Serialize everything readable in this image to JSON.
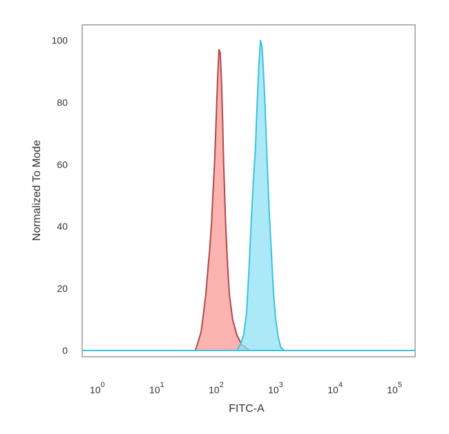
{
  "chart_data": {
    "type": "area",
    "xlabel": "FITC-A",
    "ylabel": "Normalized To Mode",
    "x_scale": "log",
    "xlim": [
      0.5,
      200000
    ],
    "ylim": [
      -2,
      105
    ],
    "grid": false,
    "legend": "none",
    "x_ticks": [
      {
        "base": "10",
        "exp": "0",
        "value": 1
      },
      {
        "base": "10",
        "exp": "1",
        "value": 10
      },
      {
        "base": "10",
        "exp": "2",
        "value": 100
      },
      {
        "base": "10",
        "exp": "3",
        "value": 1000
      },
      {
        "base": "10",
        "exp": "4",
        "value": 10000
      },
      {
        "base": "10",
        "exp": "5",
        "value": 100000
      }
    ],
    "y_ticks": [
      "0",
      "20",
      "40",
      "60",
      "80",
      "100"
    ],
    "series": [
      {
        "fill": "#f99a96",
        "stroke": "#b04848",
        "x": [
          40,
          45,
          50,
          55,
          60,
          65,
          70,
          75,
          80,
          85,
          90,
          95,
          100,
          105,
          110,
          115,
          120,
          130,
          140,
          150,
          170,
          200,
          240,
          280,
          330
        ],
        "y": [
          0,
          3,
          6,
          12,
          18,
          26,
          33,
          41,
          52,
          62,
          75,
          88,
          97,
          96,
          88,
          75,
          60,
          40,
          27,
          18,
          10,
          5,
          2,
          1,
          0
        ]
      },
      {
        "fill": "#8fe0f5",
        "stroke": "#3cc3d8",
        "x": [
          200,
          230,
          260,
          290,
          320,
          350,
          380,
          410,
          440,
          470,
          500,
          530,
          560,
          600,
          650,
          700,
          760,
          830,
          900,
          1000,
          1100,
          1250
        ],
        "y": [
          0,
          2,
          5,
          12,
          26,
          42,
          55,
          65,
          80,
          92,
          100,
          98,
          90,
          78,
          60,
          45,
          32,
          18,
          10,
          4,
          1,
          0
        ]
      }
    ]
  }
}
